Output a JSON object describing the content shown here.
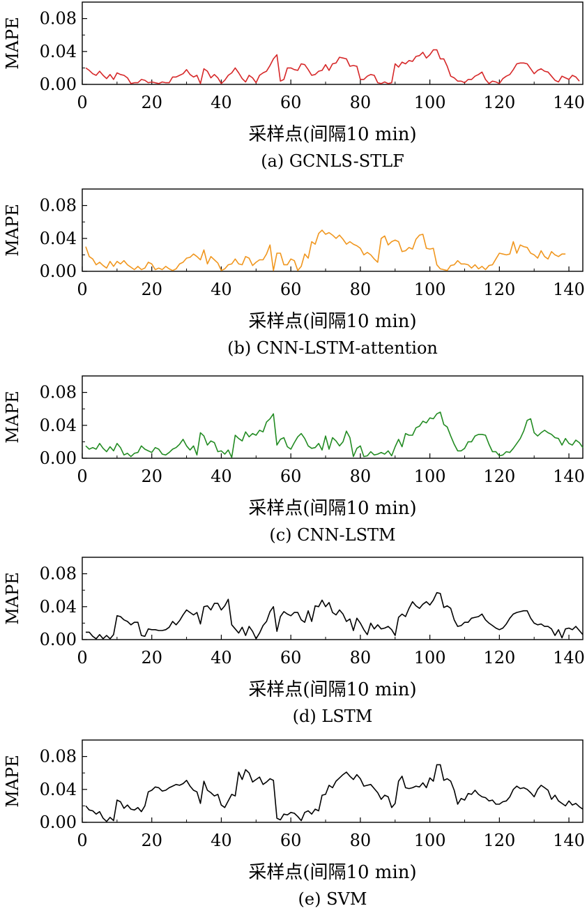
{
  "chart_data": [
    {
      "type": "line",
      "caption": "(a) GCNLS-STLF",
      "ylabel": "MAPE",
      "xlabel": "采样点(间隔10 min)",
      "xlim": [
        0,
        144
      ],
      "ylim": [
        0,
        0.1
      ],
      "xticks": [
        "0",
        "20",
        "40",
        "60",
        "80",
        "100",
        "120",
        "140"
      ],
      "yticks": [
        "0.00",
        "0.04",
        "0.08"
      ],
      "color": "#d62728",
      "grid": false,
      "x_start": 1,
      "y": [
        0.02,
        0.017,
        0.013,
        0.011,
        0.016,
        0.011,
        0.007,
        0.012,
        0.006,
        0.014,
        0.012,
        0.011,
        0.008,
        0.001,
        0.002,
        0.002,
        0.006,
        0.005,
        0.002,
        0.003,
        0.002,
        0.001,
        0.003,
        0.002,
        0.002,
        0.009,
        0.009,
        0.011,
        0.013,
        0.018,
        0.012,
        0.009,
        0.011,
        0.001,
        0.019,
        0.016,
        0.008,
        0.012,
        0.008,
        0.001,
        0.005,
        0.011,
        0.014,
        0.02,
        0.014,
        0.007,
        0.003,
        0.011,
        0.008,
        0.002,
        0.011,
        0.014,
        0.016,
        0.023,
        0.031,
        0.036,
        0.004,
        0.006,
        0.02,
        0.02,
        0.018,
        0.017,
        0.025,
        0.024,
        0.018,
        0.011,
        0.012,
        0.016,
        0.017,
        0.024,
        0.017,
        0.025,
        0.026,
        0.033,
        0.032,
        0.031,
        0.022,
        0.023,
        0.022,
        0.006,
        0.006,
        0.01,
        0.012,
        0.011,
        0.002,
        0.001,
        0.003,
        0.001,
        0.002,
        0.025,
        0.021,
        0.027,
        0.025,
        0.029,
        0.028,
        0.034,
        0.035,
        0.039,
        0.032,
        0.036,
        0.042,
        0.042,
        0.031,
        0.031,
        0.022,
        0.01,
        0.008,
        0.004,
        0.004,
        0.002,
        0.006,
        0.006,
        0.01,
        0.012,
        0.015,
        0.006,
        0.001,
        0.004,
        0.003,
        0.001,
        0.007,
        0.01,
        0.012,
        0.018,
        0.025,
        0.026,
        0.026,
        0.025,
        0.019,
        0.013,
        0.017,
        0.019,
        0.016,
        0.015,
        0.01,
        0.005,
        0.003,
        0.01,
        0.008,
        0.006,
        0.011,
        0.009,
        0.004
      ]
    },
    {
      "type": "line",
      "caption": "(b) CNN-LSTM-attention",
      "ylabel": "MAPE",
      "xlabel": "采样点(间隔10 min)",
      "xlim": [
        0,
        144
      ],
      "ylim": [
        0,
        0.1
      ],
      "xticks": [
        "0",
        "20",
        "40",
        "60",
        "80",
        "100",
        "120",
        "140"
      ],
      "yticks": [
        "0.00",
        "0.04",
        "0.08"
      ],
      "color": "#f0961e",
      "grid": false,
      "x_start": 1,
      "y": [
        0.03,
        0.018,
        0.015,
        0.008,
        0.011,
        0.007,
        0.004,
        0.012,
        0.006,
        0.012,
        0.009,
        0.013,
        0.008,
        0.005,
        0.002,
        0.006,
        0.002,
        0.004,
        0.011,
        0.009,
        0.002,
        0.004,
        0.002,
        0.006,
        0.003,
        0.001,
        0.003,
        0.009,
        0.011,
        0.016,
        0.017,
        0.021,
        0.018,
        0.014,
        0.026,
        0.009,
        0.018,
        0.014,
        0.01,
        0.001,
        0.003,
        0.008,
        0.009,
        0.015,
        0.009,
        0.008,
        0.018,
        0.016,
        0.007,
        0.011,
        0.014,
        0.014,
        0.021,
        0.032,
        0.001,
        0.022,
        0.022,
        0.008,
        0.008,
        0.015,
        0.013,
        0.001,
        0.006,
        0.021,
        0.016,
        0.036,
        0.033,
        0.046,
        0.05,
        0.045,
        0.047,
        0.044,
        0.04,
        0.044,
        0.039,
        0.033,
        0.036,
        0.033,
        0.031,
        0.028,
        0.02,
        0.023,
        0.02,
        0.015,
        0.011,
        0.04,
        0.043,
        0.032,
        0.036,
        0.038,
        0.036,
        0.024,
        0.025,
        0.029,
        0.027,
        0.039,
        0.044,
        0.045,
        0.028,
        0.027,
        0.028,
        0.008,
        0.003,
        0.002,
        0.001,
        0.007,
        0.008,
        0.013,
        0.009,
        0.009,
        0.008,
        0.004,
        0.008,
        0.003,
        0.006,
        0.002,
        0.007,
        0.008,
        0.015,
        0.022,
        0.021,
        0.02,
        0.021,
        0.036,
        0.022,
        0.032,
        0.03,
        0.029,
        0.022,
        0.02,
        0.016,
        0.025,
        0.018,
        0.015,
        0.024,
        0.02,
        0.018,
        0.021,
        0.021
      ]
    },
    {
      "type": "line",
      "caption": "(c) CNN-LSTM",
      "ylabel": "MAPE",
      "xlabel": "采样点(间隔10 min)",
      "xlim": [
        0,
        144
      ],
      "ylim": [
        0,
        0.1
      ],
      "xticks": [
        "0",
        "20",
        "40",
        "60",
        "80",
        "100",
        "120",
        "140"
      ],
      "yticks": [
        "0.00",
        "0.04",
        "0.08"
      ],
      "color": "#228b22",
      "grid": false,
      "x_start": 1,
      "y": [
        0.015,
        0.011,
        0.013,
        0.011,
        0.018,
        0.012,
        0.008,
        0.014,
        0.009,
        0.018,
        0.013,
        0.004,
        0.006,
        0.002,
        0.006,
        0.007,
        0.015,
        0.011,
        0.009,
        0.007,
        0.013,
        0.011,
        0.005,
        0.004,
        0.007,
        0.011,
        0.013,
        0.017,
        0.023,
        0.015,
        0.01,
        0.015,
        0.004,
        0.031,
        0.027,
        0.016,
        0.021,
        0.019,
        0.008,
        0.009,
        0.005,
        0.01,
        0.001,
        0.028,
        0.024,
        0.021,
        0.032,
        0.026,
        0.03,
        0.028,
        0.034,
        0.032,
        0.044,
        0.048,
        0.054,
        0.016,
        0.023,
        0.025,
        0.014,
        0.011,
        0.019,
        0.026,
        0.03,
        0.024,
        0.015,
        0.012,
        0.013,
        0.018,
        0.01,
        0.027,
        0.011,
        0.025,
        0.021,
        0.015,
        0.02,
        0.033,
        0.025,
        0.002,
        0.012,
        0.015,
        0.002,
        0.003,
        0.008,
        0.004,
        0.005,
        0.007,
        0.005,
        0.009,
        0.003,
        0.014,
        0.023,
        0.014,
        0.03,
        0.028,
        0.028,
        0.037,
        0.039,
        0.045,
        0.043,
        0.049,
        0.048,
        0.054,
        0.056,
        0.041,
        0.038,
        0.027,
        0.017,
        0.009,
        0.009,
        0.012,
        0.02,
        0.02,
        0.027,
        0.029,
        0.029,
        0.028,
        0.017,
        0.008,
        0.008,
        0.003,
        0.004,
        0.008,
        0.007,
        0.012,
        0.018,
        0.024,
        0.033,
        0.046,
        0.048,
        0.031,
        0.027,
        0.031,
        0.034,
        0.031,
        0.029,
        0.025,
        0.024,
        0.016,
        0.024,
        0.018,
        0.016,
        0.022,
        0.019,
        0.013
      ]
    },
    {
      "type": "line",
      "caption": "(d) LSTM",
      "ylabel": "MAPE",
      "xlabel": "采样点(间隔10 min)",
      "xlim": [
        0,
        144
      ],
      "ylim": [
        0,
        0.1
      ],
      "xticks": [
        "0",
        "20",
        "40",
        "60",
        "80",
        "100",
        "120",
        "140"
      ],
      "yticks": [
        "0.00",
        "0.04",
        "0.08"
      ],
      "color": "#000000",
      "grid": false,
      "x_start": 1,
      "y": [
        0.009,
        0.009,
        0.004,
        0.001,
        0.006,
        0.001,
        0.005,
        0.001,
        0.006,
        0.029,
        0.028,
        0.024,
        0.022,
        0.018,
        0.021,
        0.021,
        0.005,
        0.004,
        0.013,
        0.012,
        0.012,
        0.011,
        0.011,
        0.012,
        0.015,
        0.022,
        0.018,
        0.023,
        0.03,
        0.036,
        0.033,
        0.03,
        0.033,
        0.019,
        0.04,
        0.041,
        0.036,
        0.044,
        0.044,
        0.036,
        0.041,
        0.049,
        0.018,
        0.013,
        0.008,
        0.015,
        0.005,
        0.016,
        0.01,
        0.001,
        0.008,
        0.017,
        0.022,
        0.034,
        0.04,
        0.01,
        0.028,
        0.034,
        0.031,
        0.029,
        0.033,
        0.033,
        0.024,
        0.021,
        0.035,
        0.022,
        0.041,
        0.04,
        0.048,
        0.04,
        0.045,
        0.033,
        0.03,
        0.036,
        0.031,
        0.022,
        0.025,
        0.011,
        0.026,
        0.02,
        0.012,
        0.006,
        0.02,
        0.013,
        0.018,
        0.013,
        0.014,
        0.016,
        0.012,
        0.005,
        0.027,
        0.031,
        0.028,
        0.038,
        0.046,
        0.041,
        0.038,
        0.043,
        0.046,
        0.042,
        0.048,
        0.057,
        0.056,
        0.039,
        0.041,
        0.038,
        0.024,
        0.016,
        0.017,
        0.021,
        0.021,
        0.026,
        0.027,
        0.028,
        0.031,
        0.024,
        0.02,
        0.017,
        0.014,
        0.012,
        0.014,
        0.019,
        0.026,
        0.031,
        0.033,
        0.034,
        0.035,
        0.035,
        0.026,
        0.02,
        0.018,
        0.019,
        0.016,
        0.016,
        0.013,
        0.005,
        0.012,
        0.002,
        0.013,
        0.014,
        0.012,
        0.016,
        0.011,
        0.006
      ]
    },
    {
      "type": "line",
      "caption": "(e) SVM",
      "ylabel": "MAPE",
      "xlabel": "采样点(间隔10 min)",
      "xlim": [
        0,
        144
      ],
      "ylim": [
        0,
        0.1
      ],
      "xticks": [
        "0",
        "20",
        "40",
        "60",
        "80",
        "100",
        "120",
        "140"
      ],
      "yticks": [
        "0.00",
        "0.04",
        "0.08"
      ],
      "color": "#000000",
      "grid": false,
      "x_start": 1,
      "y": [
        0.02,
        0.015,
        0.014,
        0.01,
        0.013,
        0.005,
        0.001,
        0.006,
        0.002,
        0.027,
        0.025,
        0.017,
        0.021,
        0.016,
        0.015,
        0.018,
        0.013,
        0.02,
        0.037,
        0.039,
        0.043,
        0.042,
        0.038,
        0.039,
        0.042,
        0.044,
        0.046,
        0.045,
        0.047,
        0.051,
        0.044,
        0.039,
        0.037,
        0.023,
        0.05,
        0.039,
        0.036,
        0.032,
        0.034,
        0.021,
        0.018,
        0.026,
        0.034,
        0.032,
        0.061,
        0.052,
        0.064,
        0.06,
        0.049,
        0.052,
        0.055,
        0.046,
        0.049,
        0.053,
        0.051,
        0.005,
        0.003,
        0.01,
        0.009,
        0.012,
        0.011,
        0.007,
        0.002,
        0.012,
        0.014,
        0.01,
        0.016,
        0.014,
        0.033,
        0.034,
        0.045,
        0.042,
        0.05,
        0.054,
        0.058,
        0.061,
        0.056,
        0.052,
        0.058,
        0.053,
        0.044,
        0.045,
        0.046,
        0.041,
        0.036,
        0.028,
        0.033,
        0.031,
        0.018,
        0.023,
        0.05,
        0.056,
        0.042,
        0.041,
        0.042,
        0.044,
        0.043,
        0.048,
        0.042,
        0.054,
        0.05,
        0.07,
        0.07,
        0.051,
        0.053,
        0.05,
        0.039,
        0.022,
        0.029,
        0.027,
        0.035,
        0.034,
        0.039,
        0.034,
        0.031,
        0.03,
        0.026,
        0.027,
        0.022,
        0.022,
        0.025,
        0.026,
        0.031,
        0.04,
        0.044,
        0.041,
        0.042,
        0.04,
        0.036,
        0.031,
        0.04,
        0.045,
        0.042,
        0.039,
        0.028,
        0.033,
        0.026,
        0.023,
        0.02,
        0.026,
        0.021,
        0.023,
        0.019,
        0.016
      ]
    }
  ]
}
